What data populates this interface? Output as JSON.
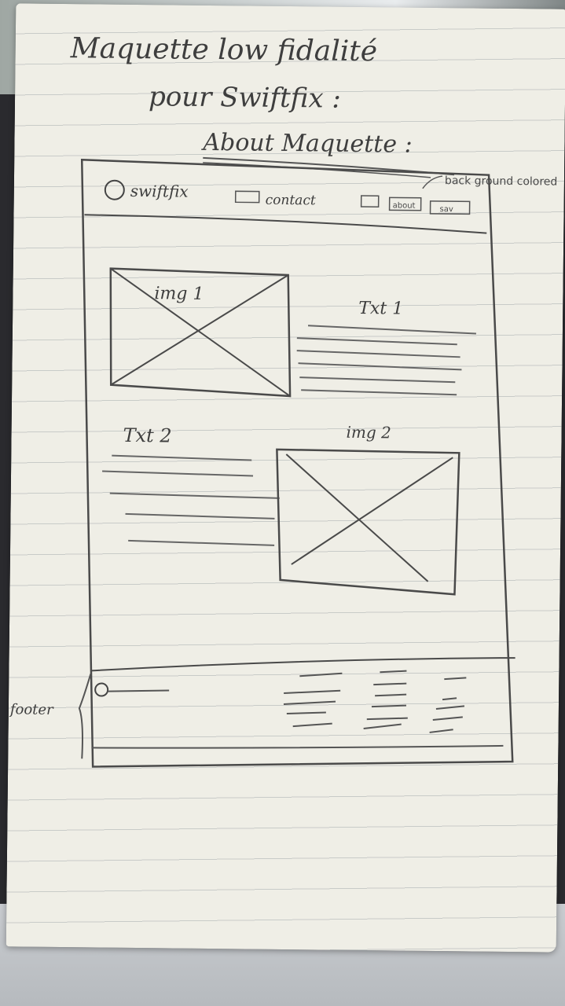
{
  "notebook": {
    "title_line1": "Maquette low fidalité",
    "title_line2": "pour Swiftfix :",
    "title_line3": "About Maquette :",
    "side_note": "back ground colored",
    "footer_note": "footer"
  },
  "wireframe": {
    "logo_text": "swiftfix",
    "nav_items": [
      "contact",
      "about",
      "sav"
    ],
    "section1": {
      "image_label": "img 1",
      "text_label": "Txt 1"
    },
    "section2": {
      "image_label": "img 2",
      "text_label": "Txt 2"
    }
  }
}
